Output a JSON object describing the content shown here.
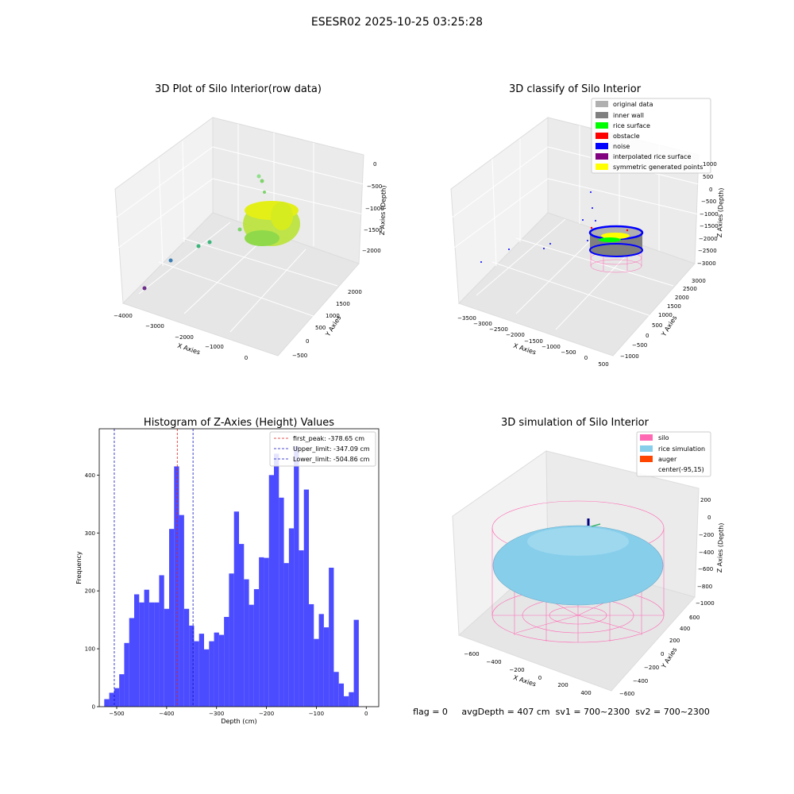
{
  "suptitle": "ESESR02 2025-10-25 03:25:28",
  "status_line": "flag = 0     avgDepth = 407 cm  sv1 = 700~2300  sv2 = 700~2300",
  "colors": {
    "hist_bar": "#4b4bff",
    "first_peak": "#e02020",
    "limits": "#1010c0",
    "silo": "#ff69b4",
    "rice": "#87ceeb",
    "auger": "#ff4500"
  },
  "plots": {
    "raw": {
      "title": "3D Plot of Silo Interior(row data)",
      "xlabel": "X Axies",
      "ylabel": "Y Axies",
      "zlabel": "Z Axies (Depth)",
      "xticks": [
        "−4000",
        "−3000",
        "−2000",
        "−1000",
        "0"
      ],
      "yticks": [
        "−500",
        "0",
        "500",
        "1000",
        "1500",
        "2000"
      ],
      "zticks": [
        "0",
        "−500",
        "−1000",
        "−1500",
        "−2000"
      ]
    },
    "classify": {
      "title": "3D classify of Silo Interior",
      "xlabel": "X Axies",
      "ylabel": "Y Axies",
      "zlabel": "Z Axies (Depth)",
      "xticks": [
        "−3500",
        "−3000",
        "−2500",
        "−2000",
        "−1500",
        "−1000",
        "−500",
        "0",
        "500"
      ],
      "yticks": [
        "−1000",
        "−500",
        "0",
        "500",
        "1000",
        "1500",
        "2000",
        "2500",
        "3000"
      ],
      "zticks": [
        "1000",
        "500",
        "0",
        "−500",
        "−1000",
        "−1500",
        "−2000",
        "−2500",
        "−3000"
      ],
      "legend": [
        {
          "label": "original data",
          "color": "#b0b0b0"
        },
        {
          "label": "inner wall",
          "color": "#808080"
        },
        {
          "label": "rice surface",
          "color": "#00ff00"
        },
        {
          "label": "obstacle",
          "color": "#ff0000"
        },
        {
          "label": "noise",
          "color": "#0000ff"
        },
        {
          "label": "interpolated rice surface",
          "color": "#800080"
        },
        {
          "label": "symmetric generated points",
          "color": "#ffff00"
        }
      ]
    },
    "simulation": {
      "title": "3D simulation of Silo Interior",
      "xlabel": "X Axies",
      "ylabel": "Y Axies",
      "zlabel": "Z Axies (Depth)",
      "xticks": [
        "−600",
        "−400",
        "−200",
        "0",
        "200",
        "400"
      ],
      "yticks": [
        "−600",
        "−400",
        "−200",
        "0",
        "200",
        "400",
        "600"
      ],
      "zticks": [
        "200",
        "0",
        "−200",
        "−400",
        "−600",
        "−800",
        "−1000"
      ],
      "legend": [
        {
          "label": "silo",
          "color": "#ff69b4"
        },
        {
          "label": "rice simulation",
          "color": "#87ceeb"
        },
        {
          "label": "auger",
          "color": "#ff4500"
        },
        {
          "label": "center(-95,15)",
          "color": "#ffffff"
        }
      ]
    }
  },
  "chart_data": {
    "type": "bar",
    "title": "Histogram of Z-Axies (Height) Values",
    "xlabel": "Depth (cm)",
    "ylabel": "Frequency",
    "xlim": [
      -535,
      25
    ],
    "ylim": [
      0,
      480
    ],
    "xticks": [
      -500,
      -400,
      -300,
      -200,
      -100,
      0
    ],
    "yticks": [
      0,
      100,
      200,
      300,
      400
    ],
    "bin_start": -525,
    "bin_width": 10,
    "values": [
      13,
      24,
      32,
      56,
      110,
      153,
      194,
      180,
      202,
      180,
      180,
      227,
      169,
      307,
      415,
      331,
      169,
      140,
      113,
      126,
      99,
      113,
      128,
      124,
      155,
      230,
      337,
      281,
      220,
      176,
      203,
      258,
      257,
      400,
      437,
      361,
      248,
      308,
      450,
      270,
      375,
      177,
      117,
      160,
      137,
      240,
      60,
      40,
      18,
      25,
      150
    ],
    "lines": [
      {
        "label": "first_peak: -378.65 cm",
        "x": -378.65,
        "role": "first_peak"
      },
      {
        "label": "Upper_limit: -347.09 cm",
        "x": -347.09,
        "role": "limits"
      },
      {
        "label": "Lower_limit: -504.86 cm",
        "x": -504.86,
        "role": "limits"
      }
    ],
    "legend_position": "upper right",
    "grid": false
  }
}
